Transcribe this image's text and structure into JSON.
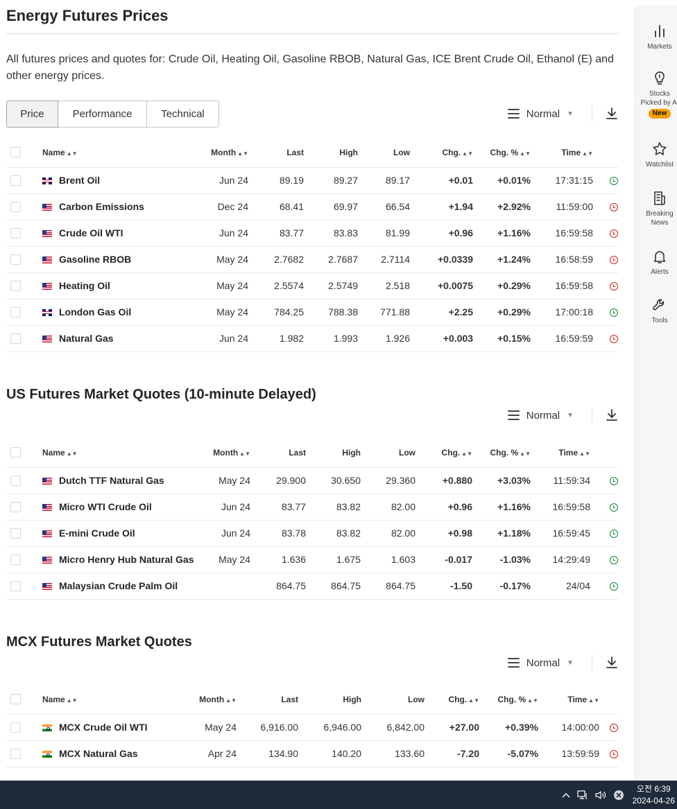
{
  "page": {
    "title": "Energy Futures Prices",
    "description": "All futures prices and quotes for: Crude Oil, Heating Oil, Gasoline RBOB, Natural Gas, ICE Brent Crude Oil, Ethanol (E) and other energy prices."
  },
  "tabs": [
    {
      "label": "Price",
      "active": true
    },
    {
      "label": "Performance",
      "active": false
    },
    {
      "label": "Technical",
      "active": false
    }
  ],
  "view_select": {
    "label": "Normal"
  },
  "sections": [
    {
      "title": "",
      "headers": {
        "name": "Name",
        "month": "Month",
        "last": "Last",
        "high": "High",
        "low": "Low",
        "chg": "Chg.",
        "chg_pct": "Chg. %",
        "time": "Time"
      },
      "rows": [
        {
          "flag": "gb",
          "name": "Brent Oil",
          "month": "Jun 24",
          "last": "89.19",
          "high": "89.27",
          "low": "89.17",
          "chg": "+0.01",
          "chg_pct": "+0.01%",
          "time": "17:31:15",
          "dir": "pos",
          "status": "open"
        },
        {
          "flag": "us",
          "name": "Carbon Emissions",
          "month": "Dec 24",
          "last": "68.41",
          "high": "69.97",
          "low": "66.54",
          "chg": "+1.94",
          "chg_pct": "+2.92%",
          "time": "11:59:00",
          "dir": "pos",
          "status": "closed"
        },
        {
          "flag": "us",
          "name": "Crude Oil WTI",
          "month": "Jun 24",
          "last": "83.77",
          "high": "83.83",
          "low": "81.99",
          "chg": "+0.96",
          "chg_pct": "+1.16%",
          "time": "16:59:58",
          "dir": "pos",
          "status": "closed"
        },
        {
          "flag": "us",
          "name": "Gasoline RBOB",
          "month": "May 24",
          "last": "2.7682",
          "high": "2.7687",
          "low": "2.7114",
          "chg": "+0.0339",
          "chg_pct": "+1.24%",
          "time": "16:58:59",
          "dir": "pos",
          "status": "closed"
        },
        {
          "flag": "us",
          "name": "Heating Oil",
          "month": "May 24",
          "last": "2.5574",
          "high": "2.5749",
          "low": "2.518",
          "chg": "+0.0075",
          "chg_pct": "+0.29%",
          "time": "16:59:58",
          "dir": "pos",
          "status": "closed"
        },
        {
          "flag": "gb",
          "name": "London Gas Oil",
          "month": "May 24",
          "last": "784.25",
          "high": "788.38",
          "low": "771.88",
          "chg": "+2.25",
          "chg_pct": "+0.29%",
          "time": "17:00:18",
          "dir": "pos",
          "status": "open"
        },
        {
          "flag": "us",
          "name": "Natural Gas",
          "month": "Jun 24",
          "last": "1.982",
          "high": "1.993",
          "low": "1.926",
          "chg": "+0.003",
          "chg_pct": "+0.15%",
          "time": "16:59:59",
          "dir": "pos",
          "status": "closed"
        }
      ]
    },
    {
      "title": "US Futures Market Quotes (10-minute Delayed)",
      "headers": {
        "name": "Name",
        "month": "Month",
        "last": "Last",
        "high": "High",
        "low": "Low",
        "chg": "Chg.",
        "chg_pct": "Chg. %",
        "time": "Time"
      },
      "rows": [
        {
          "flag": "us",
          "name": "Dutch TTF Natural Gas",
          "month": "May 24",
          "last": "29.900",
          "high": "30.650",
          "low": "29.360",
          "chg": "+0.880",
          "chg_pct": "+3.03%",
          "time": "11:59:34",
          "dir": "pos",
          "status": "open"
        },
        {
          "flag": "us",
          "name": "Micro WTI Crude Oil",
          "month": "Jun 24",
          "last": "83.77",
          "high": "83.82",
          "low": "82.00",
          "chg": "+0.96",
          "chg_pct": "+1.16%",
          "time": "16:59:58",
          "dir": "pos",
          "status": "open"
        },
        {
          "flag": "us",
          "name": "E-mini Crude Oil",
          "month": "Jun 24",
          "last": "83.78",
          "high": "83.82",
          "low": "82.00",
          "chg": "+0.98",
          "chg_pct": "+1.18%",
          "time": "16:59:45",
          "dir": "pos",
          "status": "open"
        },
        {
          "flag": "us",
          "name": "Micro Henry Hub Natural Gas",
          "month": "May 24",
          "last": "1.636",
          "high": "1.675",
          "low": "1.603",
          "chg": "-0.017",
          "chg_pct": "-1.03%",
          "time": "14:29:49",
          "dir": "neg",
          "status": "open"
        },
        {
          "flag": "us",
          "name": "Malaysian Crude Palm Oil",
          "month": "",
          "last": "864.75",
          "high": "864.75",
          "low": "864.75",
          "chg": "-1.50",
          "chg_pct": "-0.17%",
          "time": "24/04",
          "dir": "neg",
          "status": "open"
        }
      ]
    },
    {
      "title": "MCX Futures Market Quotes",
      "headers": {
        "name": "Name",
        "month": "Month",
        "last": "Last",
        "high": "High",
        "low": "Low",
        "chg": "Chg.",
        "chg_pct": "Chg. %",
        "time": "Time"
      },
      "rows": [
        {
          "flag": "in",
          "name": "MCX Crude Oil WTI",
          "month": "May 24",
          "last": "6,916.00",
          "high": "6,946.00",
          "low": "6,842.00",
          "chg": "+27.00",
          "chg_pct": "+0.39%",
          "time": "14:00:00",
          "dir": "pos",
          "status": "closed"
        },
        {
          "flag": "in",
          "name": "MCX Natural Gas",
          "month": "Apr 24",
          "last": "134.90",
          "high": "140.20",
          "low": "133.60",
          "chg": "-7.20",
          "chg_pct": "-5.07%",
          "time": "13:59:59",
          "dir": "neg",
          "status": "closed"
        }
      ]
    }
  ],
  "rail": [
    {
      "label": "Markets",
      "icon": "bar-chart-icon"
    },
    {
      "label": "Stocks Picked by AI",
      "icon": "lightbulb-icon",
      "badge": "New"
    },
    {
      "label": "Watchlist",
      "icon": "star-icon"
    },
    {
      "label": "Breaking News",
      "icon": "news-icon"
    },
    {
      "label": "Alerts",
      "icon": "bell-icon"
    },
    {
      "label": "Tools",
      "icon": "wrench-icon"
    }
  ],
  "taskbar": {
    "time": "오전 6:39",
    "date": "2024-04-26"
  },
  "colors": {
    "positive": "#0b8a33",
    "negative": "#d91e18",
    "badge": "#f7a000",
    "taskbar": "#1f2b3a"
  }
}
